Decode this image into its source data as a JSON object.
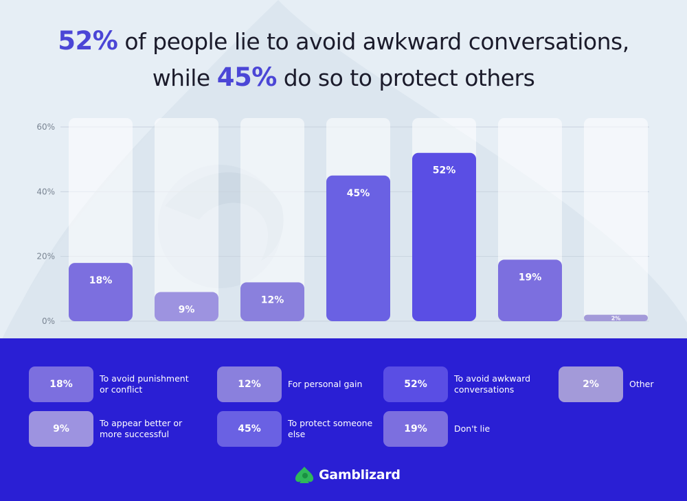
{
  "title": {
    "part1_hl": "52%",
    "part1_rest": " of people lie to avoid awkward conversations,",
    "part2_pre": "while ",
    "part2_hl": "45%",
    "part2_rest": " do so to protect others"
  },
  "chart_data": {
    "type": "bar",
    "categories": [
      "To avoid punishment or conflict",
      "To appear better or more successful",
      "For personal gain",
      "To protect someone else",
      "To avoid awkward conversations",
      "Don't lie",
      "Other"
    ],
    "values": [
      18,
      9,
      12,
      45,
      52,
      19,
      2
    ],
    "data_labels": [
      "18%",
      "9%",
      "12%",
      "45%",
      "52%",
      "19%",
      "2%"
    ],
    "bar_colors": [
      "#7c6fdf",
      "#9d93e0",
      "#8a80dd",
      "#6a61e3",
      "#5a4ee4",
      "#7c6fdf",
      "#a39ad9"
    ],
    "ylim": [
      0,
      60
    ],
    "yticks": [
      0,
      20,
      40,
      60
    ],
    "ytick_labels": [
      "0%",
      "20%",
      "40%",
      "60%"
    ],
    "grid": true,
    "title": "52% of people lie to avoid awkward conversations, while 45% do so to protect others",
    "xlabel": "",
    "ylabel": ""
  },
  "legend": [
    {
      "value": "18%",
      "label": "To avoid punishment or conflict",
      "color": "#7c6fdf"
    },
    {
      "value": "9%",
      "label": "To appear better or more successful",
      "color": "#9d93e0"
    },
    {
      "value": "12%",
      "label": "For personal gain",
      "color": "#8a80dd"
    },
    {
      "value": "45%",
      "label": "To protect someone else",
      "color": "#6a61e3"
    },
    {
      "value": "52%",
      "label": "To avoid awkward conversations",
      "color": "#5a4ee4"
    },
    {
      "value": "19%",
      "label": "Don't lie",
      "color": "#7c6fdf"
    },
    {
      "value": "2%",
      "label": "Other",
      "color": "#a39ad9"
    }
  ],
  "brand": {
    "name": "Gamblizard",
    "icon": "gamblizard-logo-icon",
    "color": "#2fb85a"
  },
  "colors": {
    "accent": "#4b46d6",
    "bottom_bg": "#2a1fd4",
    "page_bg": "#e6eef5"
  }
}
